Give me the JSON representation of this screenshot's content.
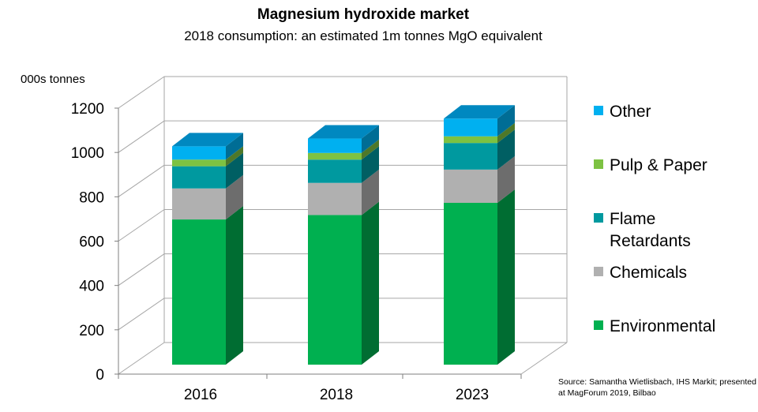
{
  "chart_data": {
    "type": "bar",
    "stacked": true,
    "title": "Magnesium hydroxide market",
    "subtitle": "2018 consumption:  an estimated 1m tonnes MgO equivalent",
    "ylabel": "000s tonnes",
    "xlabel": "",
    "ylim": [
      0,
      1200
    ],
    "yticks": [
      0,
      200,
      400,
      600,
      800,
      1000,
      1200
    ],
    "categories": [
      "2016",
      "2018",
      "2023"
    ],
    "series": [
      {
        "name": "Environmental",
        "color": "#00B050",
        "values": [
          655,
          675,
          730
        ]
      },
      {
        "name": "Chemicals",
        "color": "#B0B0B0",
        "values": [
          140,
          145,
          150
        ]
      },
      {
        "name": "Flame Retardants",
        "color": "#00999F",
        "values": [
          100,
          105,
          120
        ]
      },
      {
        "name": "Pulp & Paper",
        "color": "#7DC242",
        "values": [
          30,
          30,
          30
        ]
      },
      {
        "name": "Other",
        "color": "#00B0F0",
        "values": [
          60,
          65,
          80
        ]
      }
    ],
    "legend_position": "right",
    "legend_order": [
      "Other",
      "Pulp & Paper",
      "Flame Retardants",
      "Chemicals",
      "Environmental"
    ],
    "grid": true,
    "source": "Source: Samantha Wietlisbach, IHS Markit; presented at MagForum 2019, Bilbao",
    "legend_labels": {
      "Other": [
        "Other"
      ],
      "Pulp & Paper": [
        "Pulp & Paper"
      ],
      "Flame Retardants": [
        "Flame",
        "Retardants"
      ],
      "Chemicals": [
        "Chemicals"
      ],
      "Environmental": [
        "Environmental"
      ]
    }
  }
}
